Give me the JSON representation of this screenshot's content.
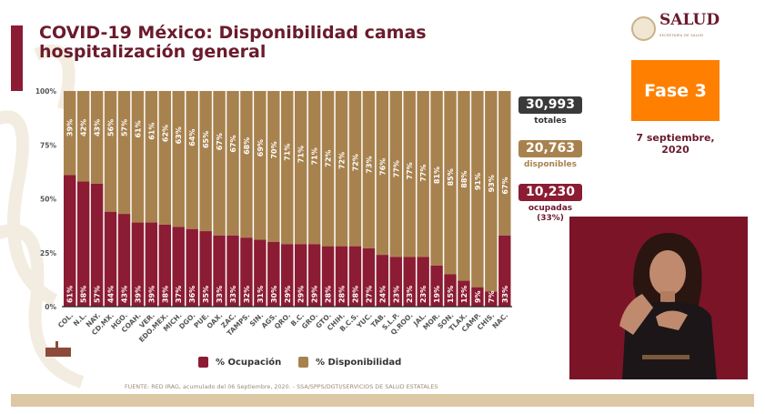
{
  "title": "COVID-19 México: Disponibilidad camas hospitalización general",
  "logo": {
    "name": "SALUD",
    "subtitle": "SECRETARÍA DE SALUD"
  },
  "phase": "Fase 3",
  "date": "7 septiembre, 2020",
  "stats": {
    "total": {
      "value": "30,993",
      "label": "totales",
      "color": "#3a3a3a"
    },
    "available": {
      "value": "20,763",
      "label": "disponibles",
      "color": "#a8824e"
    },
    "occupied": {
      "value": "10,230",
      "label": "ocupadas (33%)",
      "color": "#8b1c33"
    }
  },
  "source": "FUENTE: RED IRAG, acumulado del 06 Septiembre, 2020. -  SSA/SPPS/DGTI/SERVICIOS DE SALUD ESTATALES",
  "chart_data": {
    "type": "bar",
    "stacked": true,
    "categories": [
      "COL.",
      "N.L.",
      "NAY.",
      "CD.MX.",
      "HGO.",
      "COAH.",
      "VER.",
      "EDO.MEX.",
      "MICH.",
      "DGO.",
      "PUE.",
      "OAX.",
      "ZAC.",
      "TAMPS.",
      "SIN.",
      "AGS.",
      "QRO.",
      "B.C.",
      "GRO.",
      "GTO.",
      "CHIH.",
      "B.C.S.",
      "YUC.",
      "TAB.",
      "S.L.P.",
      "Q.ROO.",
      "JAL.",
      "MOR.",
      "SON.",
      "TLAX.",
      "CAMP.",
      "CHIS.",
      "NAC."
    ],
    "series": [
      {
        "name": "% Ocupación",
        "color": "#8b1c33",
        "values": [
          61,
          58,
          57,
          44,
          43,
          39,
          39,
          38,
          37,
          36,
          35,
          33,
          33,
          32,
          31,
          30,
          29,
          29,
          29,
          28,
          28,
          28,
          27,
          24,
          23,
          23,
          23,
          19,
          15,
          12,
          9,
          7,
          33
        ]
      },
      {
        "name": "% Disponibilidad",
        "color": "#a8824e",
        "values": [
          39,
          42,
          43,
          56,
          57,
          61,
          61,
          62,
          63,
          64,
          65,
          67,
          67,
          68,
          69,
          70,
          71,
          71,
          71,
          72,
          72,
          72,
          73,
          76,
          77,
          77,
          77,
          81,
          85,
          88,
          91,
          93,
          67
        ]
      }
    ],
    "yticks": [
      "0%",
      "25%",
      "50%",
      "75%",
      "100%"
    ],
    "ylim": [
      0,
      100
    ],
    "legend": "bottom"
  }
}
